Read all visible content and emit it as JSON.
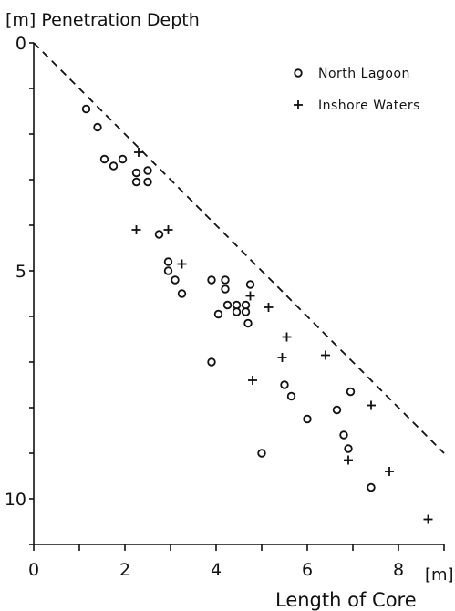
{
  "chart_data": {
    "type": "scatter",
    "title": "",
    "ylabel": "[m]  Penetration  Depth",
    "xlabel": "Length  of  Core",
    "xunit": "[m]",
    "xlim": [
      0,
      9
    ],
    "ylim": [
      0,
      11
    ],
    "y_inverted": true,
    "x_ticks": [
      0,
      2,
      4,
      6,
      8
    ],
    "y_ticks": [
      0,
      5,
      10
    ],
    "grid": false,
    "legend_position": "top-right",
    "reference_line": {
      "style": "dashed",
      "x": [
        0,
        9
      ],
      "y": [
        0,
        9
      ]
    },
    "series": [
      {
        "name": "North Lagoon",
        "marker": "o",
        "points": [
          [
            1.15,
            1.45
          ],
          [
            1.4,
            1.85
          ],
          [
            1.55,
            2.55
          ],
          [
            1.75,
            2.7
          ],
          [
            1.95,
            2.55
          ],
          [
            2.25,
            2.85
          ],
          [
            2.25,
            3.05
          ],
          [
            2.5,
            2.8
          ],
          [
            2.5,
            3.05
          ],
          [
            2.75,
            4.2
          ],
          [
            2.95,
            4.8
          ],
          [
            2.95,
            5.0
          ],
          [
            3.1,
            5.2
          ],
          [
            3.25,
            5.5
          ],
          [
            3.9,
            5.2
          ],
          [
            4.05,
            5.95
          ],
          [
            4.2,
            5.2
          ],
          [
            4.2,
            5.4
          ],
          [
            4.25,
            5.75
          ],
          [
            4.45,
            5.75
          ],
          [
            4.45,
            5.9
          ],
          [
            4.65,
            5.75
          ],
          [
            4.65,
            5.9
          ],
          [
            4.7,
            6.15
          ],
          [
            4.75,
            5.3
          ],
          [
            3.9,
            7.0
          ],
          [
            5.5,
            7.5
          ],
          [
            5.65,
            7.75
          ],
          [
            6.0,
            8.25
          ],
          [
            5.0,
            9.0
          ],
          [
            6.65,
            8.05
          ],
          [
            6.8,
            8.6
          ],
          [
            6.9,
            8.9
          ],
          [
            6.95,
            7.65
          ],
          [
            7.4,
            9.75
          ]
        ]
      },
      {
        "name": "Inshore Waters",
        "marker": "+",
        "points": [
          [
            2.3,
            2.4
          ],
          [
            2.25,
            4.1
          ],
          [
            2.95,
            4.1
          ],
          [
            3.25,
            4.85
          ],
          [
            4.75,
            5.55
          ],
          [
            5.15,
            5.8
          ],
          [
            5.55,
            6.45
          ],
          [
            5.45,
            6.9
          ],
          [
            6.4,
            6.85
          ],
          [
            4.8,
            7.4
          ],
          [
            7.4,
            7.95
          ],
          [
            6.9,
            9.15
          ],
          [
            7.8,
            9.4
          ],
          [
            8.65,
            10.45
          ]
        ]
      }
    ]
  }
}
